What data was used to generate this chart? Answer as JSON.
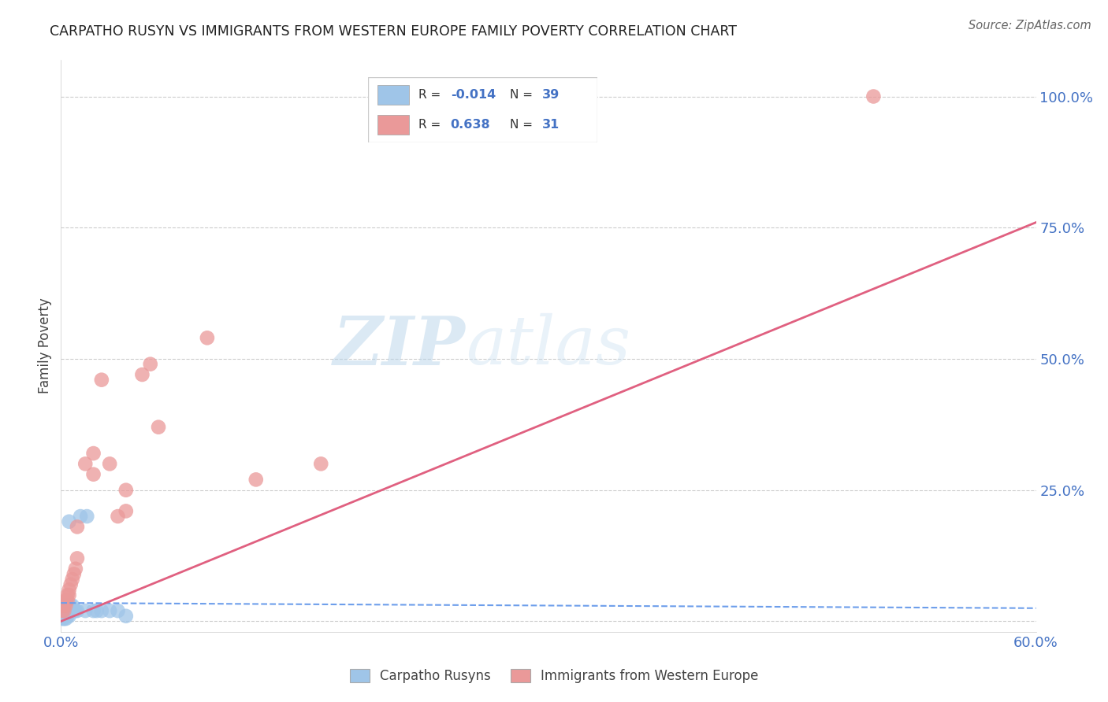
{
  "title": "CARPATHO RUSYN VS IMMIGRANTS FROM WESTERN EUROPE FAMILY POVERTY CORRELATION CHART",
  "source": "Source: ZipAtlas.com",
  "ylabel": "Family Poverty",
  "x_min": 0.0,
  "x_max": 0.6,
  "y_min": -0.02,
  "y_max": 1.07,
  "right_yticks": [
    0.0,
    0.25,
    0.5,
    0.75,
    1.0
  ],
  "right_yticklabels": [
    "",
    "25.0%",
    "50.0%",
    "75.0%",
    "100.0%"
  ],
  "color_blue": "#9fc5e8",
  "color_pink": "#ea9999",
  "color_blue_line": "#6d9eeb",
  "color_pink_line": "#e06080",
  "legend_label1": "Carpatho Rusyns",
  "legend_label2": "Immigrants from Western Europe",
  "blue_x": [
    0.001,
    0.001,
    0.001,
    0.001,
    0.001,
    0.002,
    0.002,
    0.002,
    0.002,
    0.002,
    0.003,
    0.003,
    0.003,
    0.003,
    0.004,
    0.004,
    0.004,
    0.005,
    0.005,
    0.005,
    0.006,
    0.006,
    0.007,
    0.007,
    0.008,
    0.009,
    0.01,
    0.012,
    0.015,
    0.016,
    0.02,
    0.022,
    0.025,
    0.03,
    0.035,
    0.04,
    0.001,
    0.002,
    0.003
  ],
  "blue_y": [
    0.01,
    0.01,
    0.01,
    0.02,
    0.02,
    0.01,
    0.01,
    0.02,
    0.02,
    0.03,
    0.01,
    0.02,
    0.02,
    0.03,
    0.01,
    0.02,
    0.03,
    0.01,
    0.02,
    0.19,
    0.02,
    0.03,
    0.02,
    0.03,
    0.02,
    0.02,
    0.02,
    0.2,
    0.02,
    0.2,
    0.02,
    0.02,
    0.02,
    0.02,
    0.02,
    0.01,
    0.005,
    0.005,
    0.005
  ],
  "pink_x": [
    0.001,
    0.001,
    0.002,
    0.002,
    0.003,
    0.003,
    0.004,
    0.004,
    0.005,
    0.005,
    0.006,
    0.007,
    0.008,
    0.009,
    0.01,
    0.01,
    0.015,
    0.02,
    0.02,
    0.025,
    0.03,
    0.035,
    0.04,
    0.04,
    0.05,
    0.055,
    0.06,
    0.5,
    0.09,
    0.12,
    0.16
  ],
  "pink_y": [
    0.02,
    0.03,
    0.02,
    0.03,
    0.03,
    0.04,
    0.04,
    0.05,
    0.05,
    0.06,
    0.07,
    0.08,
    0.09,
    0.1,
    0.12,
    0.18,
    0.3,
    0.28,
    0.32,
    0.46,
    0.3,
    0.2,
    0.21,
    0.25,
    0.47,
    0.49,
    0.37,
    1.0,
    0.54,
    0.27,
    0.3
  ],
  "blue_trend_x": [
    0.0,
    0.6
  ],
  "blue_trend_y": [
    0.035,
    0.025
  ],
  "pink_trend_x": [
    0.0,
    0.6
  ],
  "pink_trend_y": [
    0.0,
    0.76
  ],
  "watermark_zip": "ZIP",
  "watermark_atlas": "atlas"
}
